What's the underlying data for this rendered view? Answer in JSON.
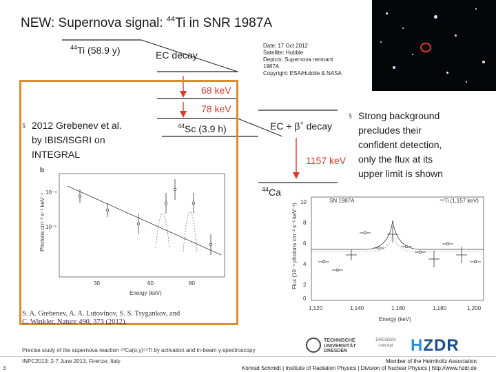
{
  "title": {
    "prefix": "NEW: Supernova signal: ",
    "isotope_mass": "44",
    "suffix": "Ti in SNR 1987A"
  },
  "photo_caption": {
    "line1": "Date: 17 Oct 2012",
    "line2": "Satellite: Hubble",
    "line3": "Depicts: Supernova remnant",
    "line4": "1987A",
    "line5": "Copyright: ESA/Hubble & NASA"
  },
  "scheme": {
    "ti_mass": "44",
    "ti_label": "Ti (58.9 y)",
    "ec_decay": "EC decay",
    "e68": "68 keV",
    "e78": "78 keV",
    "sc_mass": "44",
    "sc_label": "Sc (3.9 h)",
    "ecbeta_prefix": "EC + β",
    "ecbeta_sup": "+",
    "ecbeta_suffix": " decay",
    "e1157": "1157 keV",
    "ca_mass": "44",
    "ca_label": "Ca",
    "accent_color": "#e0392b"
  },
  "bullet_left": {
    "mark": "§",
    "line1": "2012 Grebenev et al.",
    "line2": "by IBIS/ISGRI on",
    "line3": "INTEGRAL"
  },
  "bullet_right": {
    "mark": "§",
    "line1": "Strong background",
    "line2": "precludes their",
    "line3": "confident detection,",
    "line4": "only the flux at its",
    "line5": "upper limit is shown"
  },
  "plot_left": {
    "panel": "b",
    "ylabel": "Photons cm⁻² s⁻¹ keV⁻¹",
    "xlabel": "Energy (keV)",
    "ytick_hi": "10⁻⁴",
    "ytick_lo": "10⁻⁵",
    "xticks": [
      "30",
      "60",
      "80"
    ]
  },
  "plot_right": {
    "tag_left": "SN 1987A",
    "tag_right": "⁴⁴Ti (1,157 keV)",
    "ylabel": "Flux (10⁻⁴ photons cm⁻² s⁻¹ keV⁻¹)",
    "xlabel": "Energy (keV)",
    "yticks": [
      "10",
      "8",
      "6",
      "4",
      "2",
      "0"
    ],
    "xticks": [
      "1,120",
      "1,140",
      "1,160",
      "1,180",
      "1,200"
    ]
  },
  "citation": {
    "line1": "S. A. Grebenev, A. A. Lutovinov, S. S. Tsygankov, and",
    "line2": "C. Winkler, Nature 490, 373 (2012)."
  },
  "footer": {
    "study": "Precise study of the supernova reaction ⁴⁰Ca(α,γ)⁴⁴Ti by activation and in-beam γ-spectroscopy",
    "conference": "INPC2013: 2-7 June 2013, Firenze, Italy",
    "page": "3",
    "member": "Member of the Helmholtz Association",
    "institute": "Konrad Schmidt | Institute of Radiation Physics | Division of Nuclear Physics | http://www.hzdr.de"
  },
  "logos": {
    "tud_line1": "TECHNISCHE",
    "tud_line2": "UNIVERSITÄT",
    "tud_line3": "DRESDEN",
    "dc_line1": "DRESDEN",
    "dc_line2": "concept",
    "hzdr_h": "H",
    "hzdr_rest": "ZDR"
  }
}
